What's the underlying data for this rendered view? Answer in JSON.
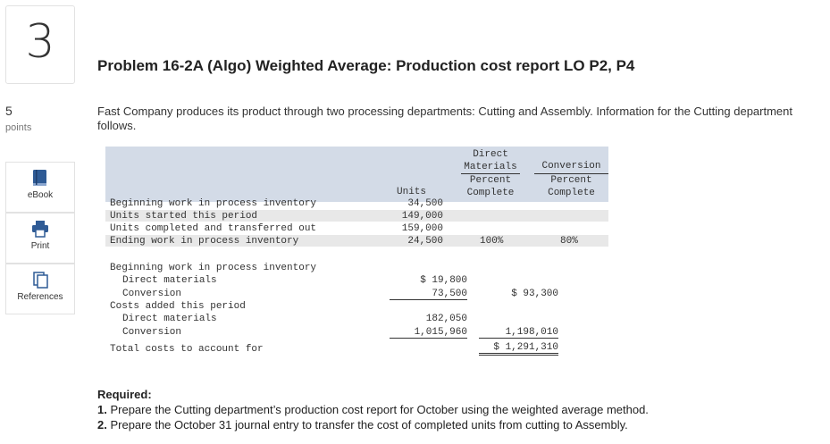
{
  "question": {
    "number": "3",
    "points_value": "5",
    "points_label": "points"
  },
  "sidebar": {
    "ebook": "eBook",
    "print": "Print",
    "references": "References"
  },
  "title": "Problem 16-2A (Algo) Weighted Average: Production cost report LO P2, P4",
  "intro": "Fast Company produces its product through two processing departments: Cutting and Assembly. Information for the Cutting department follows.",
  "table": {
    "headers": {
      "direct_materials": "Direct Materials",
      "conversion": "Conversion",
      "units": "Units",
      "dm_percent": "Percent Complete",
      "conv_percent": "Percent Complete"
    },
    "unit_rows": [
      {
        "label": "Beginning work in process inventory",
        "units": "34,500",
        "dm": "",
        "conv": ""
      },
      {
        "label": "Units started this period",
        "units": "149,000",
        "dm": "",
        "conv": ""
      },
      {
        "label": "Units completed and transferred out",
        "units": "159,000",
        "dm": "",
        "conv": ""
      },
      {
        "label": "Ending work in process inventory",
        "units": "24,500",
        "dm": "100%",
        "conv": "80%"
      }
    ],
    "cost_rows": {
      "beg_wip_label": "Beginning work in process inventory",
      "beg_dm_label": "Direct materials",
      "beg_dm_value": "$ 19,800",
      "beg_conv_label": "Conversion",
      "beg_conv_value": "73,500",
      "beg_total": "$ 93,300",
      "added_label": "Costs added this period",
      "added_dm_label": "Direct materials",
      "added_dm_value": "182,050",
      "added_conv_label": "Conversion",
      "added_conv_value": "1,015,960",
      "added_total": "1,198,010",
      "total_label": "Total costs to account for",
      "grand_total": "$ 1,291,310"
    }
  },
  "required": {
    "heading": "Required:",
    "items": [
      {
        "num": "1.",
        "text": "Prepare the Cutting department’s production cost report for October using the weighted average method."
      },
      {
        "num": "2.",
        "text": "Prepare the October 31 journal entry to transfer the cost of  completed units from cutting to Assembly."
      }
    ]
  }
}
